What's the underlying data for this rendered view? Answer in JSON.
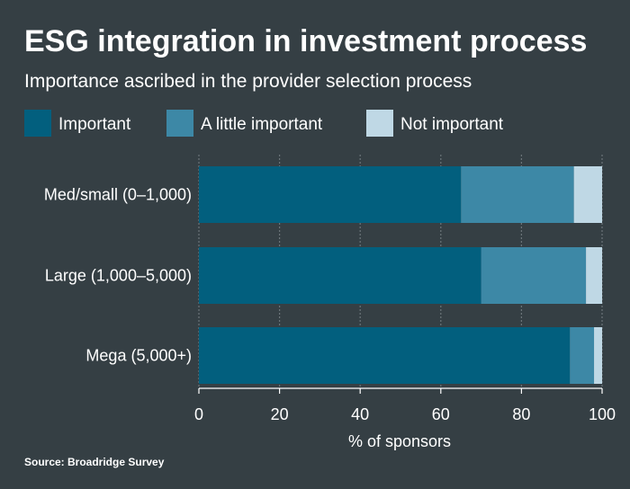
{
  "chart_data": {
    "type": "bar",
    "orientation": "horizontal",
    "stacked": true,
    "title": "ESG integration in investment process",
    "subtitle": "Importance ascribed in the provider selection process",
    "categories": [
      "Med/small (0–1,000)",
      "Large (1,000–5,000)",
      "Mega (5,000+)"
    ],
    "series": [
      {
        "name": "Important",
        "color": "#025f7e",
        "values": [
          65,
          70,
          92
        ]
      },
      {
        "name": "A little important",
        "color": "#3d88a6",
        "values": [
          28,
          26,
          6
        ]
      },
      {
        "name": "Not important",
        "color": "#bfd8e5",
        "values": [
          7,
          4,
          2
        ]
      }
    ],
    "xlabel": "% of sponsors",
    "ylabel": "",
    "xlim": [
      0,
      100
    ],
    "xticks": [
      "0",
      "20",
      "40",
      "60",
      "80",
      "100"
    ],
    "grid": true,
    "legend_position": "top-left",
    "source": "Source: Broadridge Survey"
  }
}
